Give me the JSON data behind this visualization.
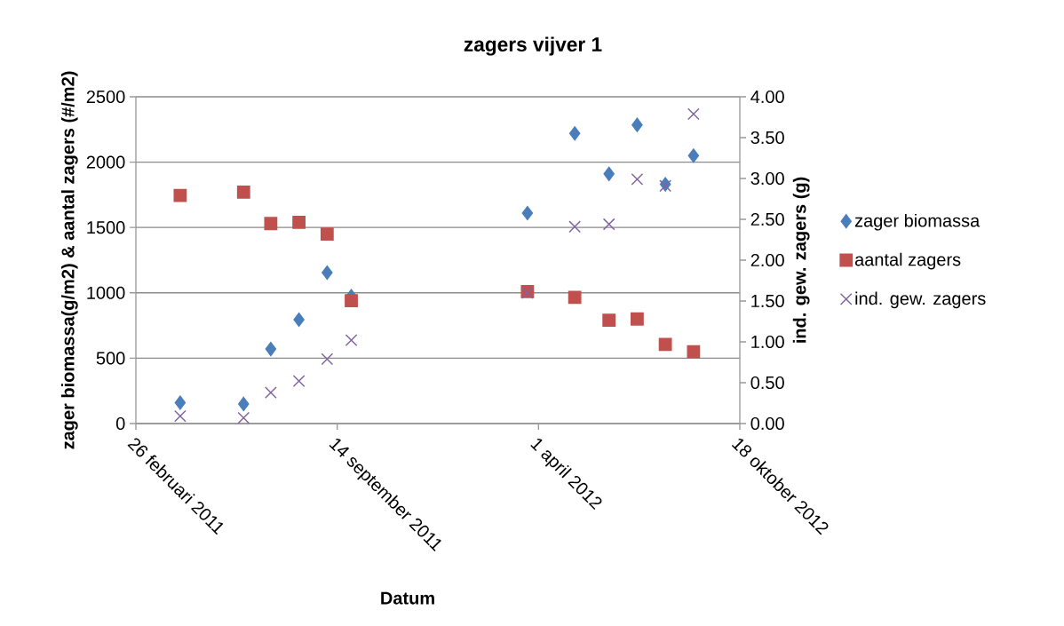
{
  "chart_data": {
    "type": "scatter",
    "title": "zagers vijver 1",
    "xlabel": "Datum",
    "ylabel": "zager biomassa(g/m2) & aantal zagers (#/m2)",
    "y2label": "ind. gew. zagers (g)",
    "x": [
      "2011-04-11",
      "2011-06-13",
      "2011-07-10",
      "2011-08-07",
      "2011-09-04",
      "2011-09-28",
      "2012-03-21",
      "2012-05-07",
      "2012-06-10",
      "2012-07-08",
      "2012-08-05",
      "2012-09-02"
    ],
    "series": [
      {
        "name": "zager biomassa",
        "color": "#4a7ebb",
        "marker": "diamond",
        "values": [
          160,
          150,
          570,
          795,
          1155,
          975,
          1610,
          2220,
          1910,
          2285,
          1830,
          2050
        ]
      },
      {
        "name": "aantal zagers",
        "color": "#c0504d",
        "marker": "square",
        "values": [
          1745,
          1770,
          1530,
          1540,
          1450,
          940,
          1010,
          965,
          790,
          800,
          605,
          550
        ]
      },
      {
        "name": "ind. gew. zagers",
        "color": "#8064a2",
        "marker": "cross",
        "axis": "y2",
        "values": [
          0.09,
          0.07,
          0.38,
          0.52,
          0.79,
          1.02,
          1.6,
          2.41,
          2.44,
          2.99,
          2.91,
          3.79
        ]
      }
    ],
    "xlim": [
      "2011-02-26",
      "2012-10-18"
    ],
    "xticks": [
      {
        "value": "2011-02-26",
        "label": "26 februari 2011"
      },
      {
        "value": "2011-09-14",
        "label": "14 september 2011"
      },
      {
        "value": "2012-04-01",
        "label": "1 april 2012"
      },
      {
        "value": "2012-10-18",
        "label": "18 oktober 2012"
      }
    ],
    "ylim": [
      0,
      2500
    ],
    "yticks": [
      0,
      500,
      1000,
      1500,
      2000,
      2500
    ],
    "y2lim": [
      0,
      4
    ],
    "y2ticks": [
      {
        "value": 0,
        "label": "0.00"
      },
      {
        "value": 0.5,
        "label": "0.50"
      },
      {
        "value": 1,
        "label": "1.00"
      },
      {
        "value": 1.5,
        "label": "1.50"
      },
      {
        "value": 2,
        "label": "2.00"
      },
      {
        "value": 2.5,
        "label": "2.50"
      },
      {
        "value": 3,
        "label": "3.00"
      },
      {
        "value": 3.5,
        "label": "3.50"
      },
      {
        "value": 4,
        "label": "4.00"
      }
    ],
    "grid": "y",
    "legend": "right"
  }
}
